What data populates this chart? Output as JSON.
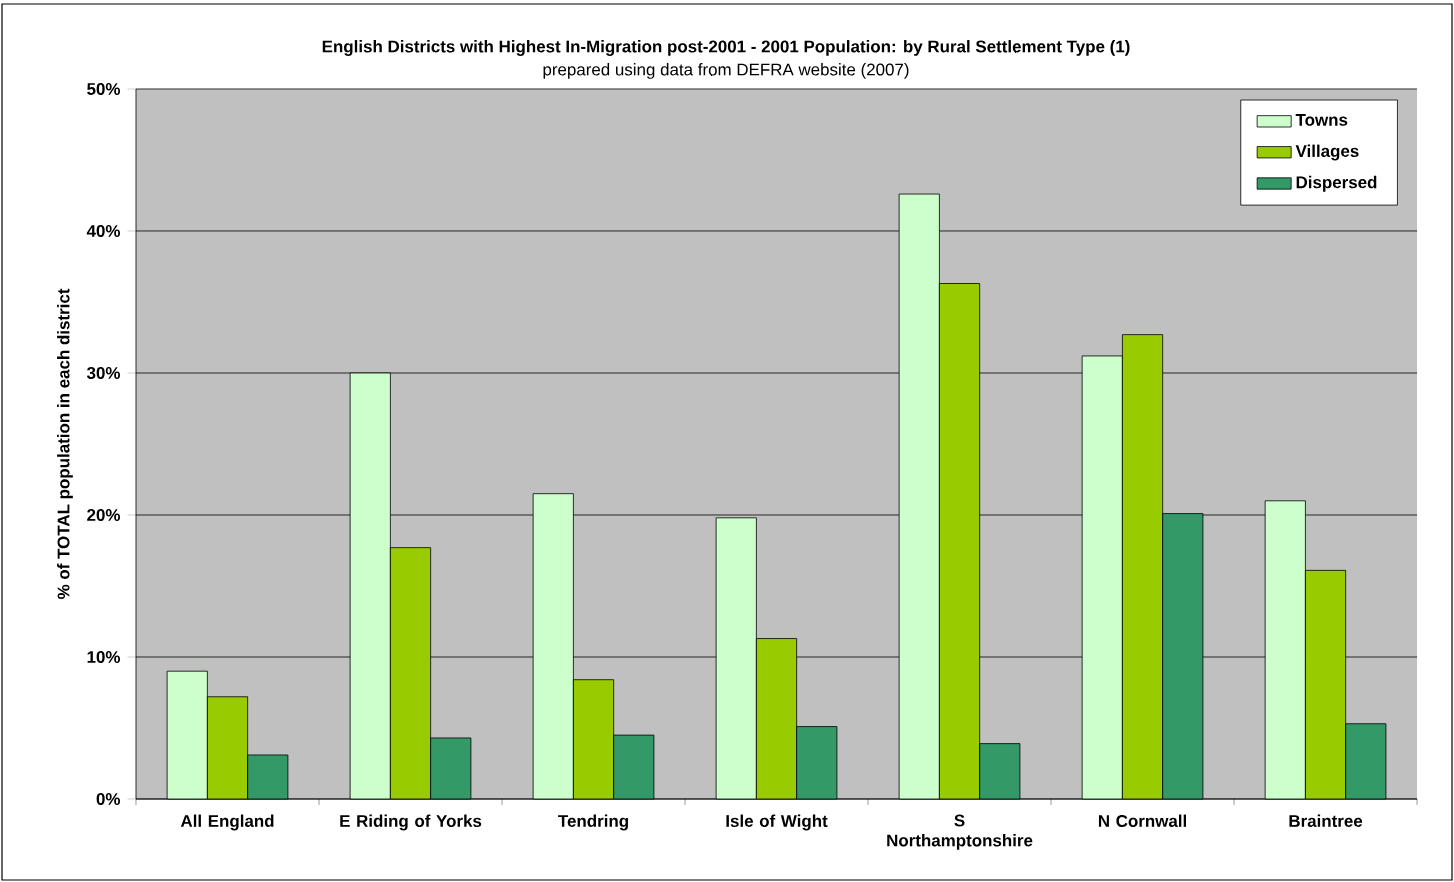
{
  "chart_data": {
    "type": "bar",
    "title": "English Districts with Highest In-Migration post-2001 - 2001 Population: by Rural Settlement Type (1)",
    "subtitle": "prepared using data from DEFRA website (2007)",
    "ylabel": "% of TOTAL population in each district",
    "categories": [
      "All England",
      "E Riding of Yorks",
      "Tendring",
      "Isle of Wight",
      "S Northamptonshire",
      "N Cornwall",
      "Braintree"
    ],
    "series": [
      {
        "name": "Towns",
        "color": "#ccffcc",
        "values": [
          9.0,
          30.0,
          21.5,
          19.8,
          42.6,
          31.2,
          21.0
        ]
      },
      {
        "name": "Villages",
        "color": "#99cc00",
        "values": [
          7.2,
          17.7,
          8.4,
          11.3,
          36.3,
          32.7,
          16.1
        ]
      },
      {
        "name": "Dispersed",
        "color": "#339966",
        "values": [
          3.1,
          4.3,
          4.5,
          5.1,
          3.9,
          20.1,
          5.3
        ]
      }
    ],
    "ylim": [
      0,
      50
    ],
    "yticks": [
      {
        "value": 0,
        "label": "0%"
      },
      {
        "value": 10,
        "label": "10%"
      },
      {
        "value": 20,
        "label": "20%"
      },
      {
        "value": 30,
        "label": "30%"
      },
      {
        "value": 40,
        "label": "40%"
      },
      {
        "value": 50,
        "label": "50%"
      }
    ],
    "grid": "y",
    "legend": "top right"
  }
}
